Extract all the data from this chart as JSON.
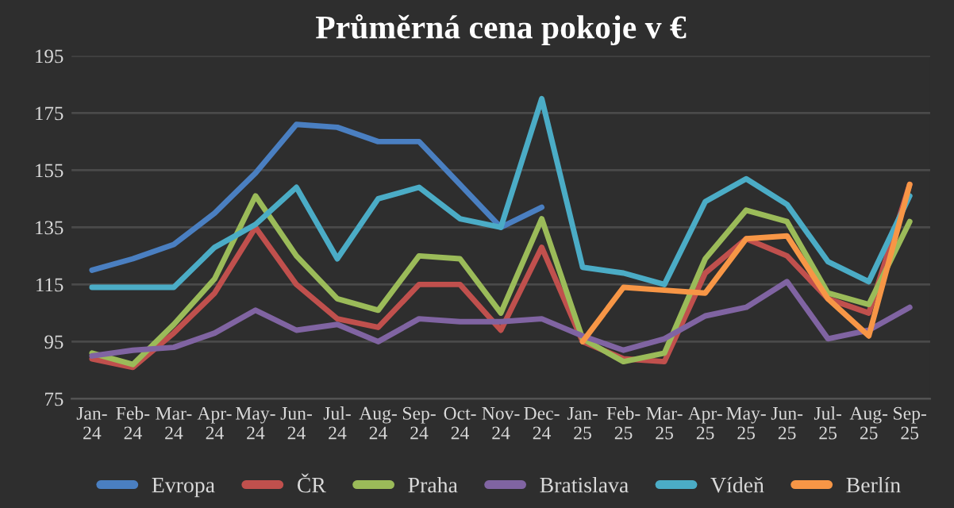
{
  "chart_data": {
    "type": "line",
    "title": "Průměrná cena pokoje v €",
    "categories": [
      "Jan-\n24",
      "Feb-\n24",
      "Mar-\n24",
      "Apr-\n24",
      "May-\n24",
      "Jun-\n24",
      "Jul-\n24",
      "Aug-\n24",
      "Sep-\n24",
      "Oct-\n24",
      "Nov-\n24",
      "Dec-\n24",
      "Jan-\n25",
      "Feb-\n25",
      "Mar-\n25",
      "Apr-\n25",
      "May-\n25",
      "Jun-\n25",
      "Jul-\n25",
      "Aug-\n25",
      "Sep-\n25"
    ],
    "series": [
      {
        "name": "Evropa",
        "color": "#4a7fc1",
        "values": [
          120,
          124,
          129,
          140,
          154,
          171,
          170,
          165,
          165,
          150,
          135,
          142,
          null,
          null,
          null,
          null,
          null,
          null,
          null,
          null,
          null
        ]
      },
      {
        "name": "ČR",
        "color": "#c0504d",
        "values": [
          89,
          86,
          98,
          112,
          135,
          115,
          103,
          100,
          115,
          115,
          99,
          128,
          95,
          89,
          88,
          119,
          131,
          125,
          110,
          105,
          150
        ]
      },
      {
        "name": "Praha",
        "color": "#9bbb59",
        "values": [
          91,
          87,
          101,
          117,
          146,
          125,
          110,
          106,
          125,
          124,
          105,
          138,
          96,
          88,
          91,
          124,
          141,
          137,
          112,
          108,
          137
        ]
      },
      {
        "name": "Bratislava",
        "color": "#8064a2",
        "values": [
          90,
          92,
          93,
          98,
          106,
          99,
          101,
          95,
          103,
          102,
          102,
          103,
          97,
          92,
          96,
          104,
          107,
          116,
          96,
          99,
          107
        ]
      },
      {
        "name": "Vídeň",
        "color": "#4bacc6",
        "values": [
          114,
          114,
          114,
          128,
          136,
          149,
          124,
          145,
          149,
          138,
          135,
          180,
          121,
          119,
          115,
          144,
          152,
          143,
          123,
          116,
          146
        ]
      },
      {
        "name": "Berlín",
        "color": "#f79646",
        "values": [
          null,
          null,
          null,
          null,
          null,
          null,
          null,
          null,
          null,
          null,
          null,
          null,
          95,
          114,
          113,
          112,
          131,
          132,
          110,
          97,
          150
        ]
      }
    ],
    "ylim": [
      75,
      195
    ],
    "yticks": [
      75,
      95,
      115,
      135,
      155,
      175,
      195
    ],
    "grid": "y",
    "legend": "bottom",
    "marker": "none",
    "line_style": "solid"
  }
}
